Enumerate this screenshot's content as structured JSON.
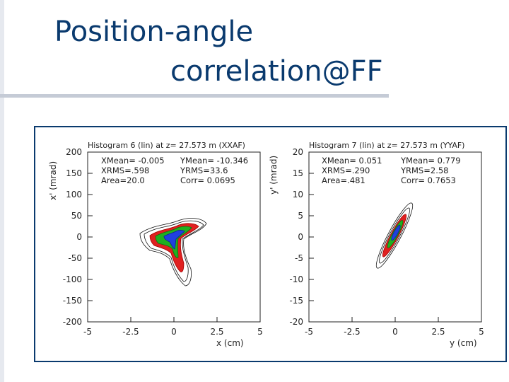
{
  "slide": {
    "title_line1": "Position-angle",
    "title_line2": "correlation@FF"
  },
  "chart_data": [
    {
      "type": "heatmap",
      "title": "Histogram  6 (lin) at z= 27.573 m (XXAF)",
      "xlabel": "x (cm)",
      "ylabel": "x' (mrad)",
      "xlim": [
        -5,
        5
      ],
      "ylim": [
        -200,
        200
      ],
      "xticks": [
        -5,
        -2.5,
        0,
        2.5,
        5
      ],
      "xtick_labels": [
        "-5",
        "-2.5",
        "0",
        "2.5",
        "5"
      ],
      "yticks": [
        200,
        150,
        100,
        50,
        0,
        -50,
        -100,
        -150,
        -200
      ],
      "ytick_labels": [
        "200",
        "150",
        "100",
        "50",
        "0",
        "-50",
        "-100",
        "-150",
        "-200"
      ],
      "stats": {
        "xmean": "XMean= -0.005",
        "ymean": "YMean= -10.346",
        "xrms": "XRMS=.598",
        "yrms": "YRMS=33.6",
        "area": "Area=20.0",
        "corr": "Corr= 0.0695"
      },
      "contour_colors": [
        "#000000",
        "#e02020",
        "#20b020",
        "#2040e0"
      ]
    },
    {
      "type": "heatmap",
      "title": "Histogram  7 (lin) at z= 27.573 m (YYAF)",
      "xlabel": "y (cm)",
      "ylabel": "y' (mrad)",
      "xlim": [
        -5,
        5
      ],
      "ylim": [
        -20,
        20
      ],
      "xticks": [
        -5,
        -2.5,
        0,
        2.5,
        5
      ],
      "xtick_labels": [
        "-5",
        "-2.5",
        "0",
        "2.5",
        "5"
      ],
      "yticks": [
        20,
        15,
        10,
        5,
        0,
        -5,
        -10,
        -15,
        -20
      ],
      "ytick_labels": [
        "20",
        "15",
        "10",
        "5",
        "0",
        "-5",
        "-10",
        "-15",
        "-20"
      ],
      "stats": {
        "xmean": "XMean= 0.051",
        "ymean": "YMean= 0.779",
        "xrms": "XRMS=.290",
        "yrms": "YRMS=2.58",
        "area": "Area=.481",
        "corr": "Corr= 0.7653"
      },
      "contour_colors": [
        "#000000",
        "#e02020",
        "#20b020",
        "#2040e0"
      ]
    }
  ]
}
